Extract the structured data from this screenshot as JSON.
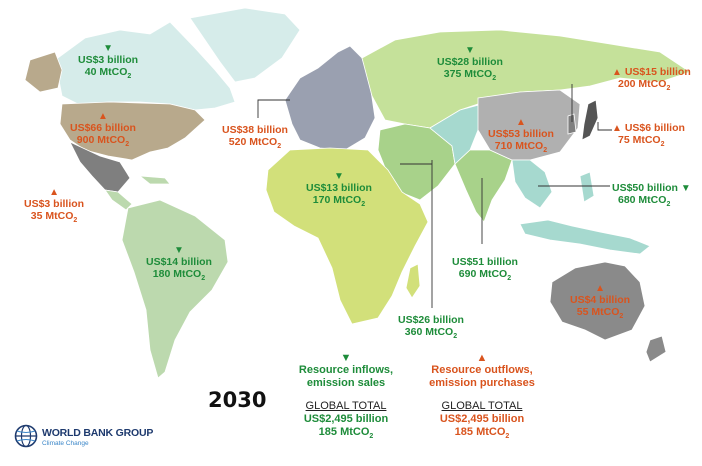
{
  "year": "2030",
  "colors": {
    "inflow": "#1e8c3a",
    "outflow": "#d9541e",
    "canada": "#d6ecea",
    "usa": "#b8a98c",
    "mexico": "#7f7f7f",
    "latin_america": "#bcd9ae",
    "africa": "#d2e07a",
    "middle_east": "#a8d28a",
    "europe": "#9aa0b0",
    "russia": "#c5e19a",
    "china": "#b0b0b0",
    "india": "#a8d28a",
    "east_asia_pacific": "#a6d9cf",
    "australia": "#8a8a8a",
    "japan": "#555555"
  },
  "regions": [
    {
      "id": "canada",
      "direction": "inflow",
      "amount": "US$3 billion",
      "emissions": "40 MtCO",
      "sub": "2"
    },
    {
      "id": "usa",
      "direction": "outflow",
      "amount": "US$66 billion",
      "emissions": "900 MtCO",
      "sub": "2"
    },
    {
      "id": "mexico",
      "direction": "outflow",
      "amount": "US$3 billion",
      "emissions": "35 MtCO",
      "sub": "2"
    },
    {
      "id": "europe",
      "direction": "outflow",
      "amount": "US$38 billion",
      "emissions": "520 MtCO",
      "sub": "2"
    },
    {
      "id": "russia",
      "direction": "inflow",
      "amount": "US$28 billion",
      "emissions": "375 MtCO",
      "sub": "2"
    },
    {
      "id": "korea",
      "direction": "outflow",
      "amount": "US$15 billion",
      "emissions": "200 MtCO",
      "sub": "2"
    },
    {
      "id": "japan",
      "direction": "outflow",
      "amount": "US$6 billion",
      "emissions": "75 MtCO",
      "sub": "2"
    },
    {
      "id": "china",
      "direction": "outflow",
      "amount": "US$53 billion",
      "emissions": "710 MtCO",
      "sub": "2"
    },
    {
      "id": "africa",
      "direction": "inflow",
      "amount": "US$13 billion",
      "emissions": "170 MtCO",
      "sub": "2"
    },
    {
      "id": "latin_america",
      "direction": "inflow",
      "amount": "US$14 billion",
      "emissions": "180 MtCO",
      "sub": "2"
    },
    {
      "id": "east_asia_pacific",
      "direction": "inflow",
      "amount": "US$50 billion",
      "emissions": "680 MtCO",
      "sub": "2"
    },
    {
      "id": "south_asia",
      "direction": "inflow",
      "amount": "US$51 billion",
      "emissions": "690 MtCO",
      "sub": "2"
    },
    {
      "id": "middle_east",
      "direction": "inflow",
      "amount": "US$26 billion",
      "emissions": "360 MtCO",
      "sub": "2"
    },
    {
      "id": "australia",
      "direction": "outflow",
      "amount": "US$4 billion",
      "emissions": "55 MtCO",
      "sub": "2"
    }
  ],
  "legend": {
    "inflow": {
      "line1": "Resource inflows,",
      "line2": "emission sales"
    },
    "outflow": {
      "line1": "Resource outflows,",
      "line2": "emission purchases"
    },
    "total_heading": "GLOBAL TOTAL",
    "inflow_total_amount": "US$2,495 billion",
    "inflow_total_emissions": "185 MtCO",
    "outflow_total_amount": "US$2,495 billion",
    "outflow_total_emissions": "185 MtCO",
    "sub": "2"
  },
  "logo": {
    "org": "WORLD BANK GROUP",
    "sub": "Climate Change"
  }
}
